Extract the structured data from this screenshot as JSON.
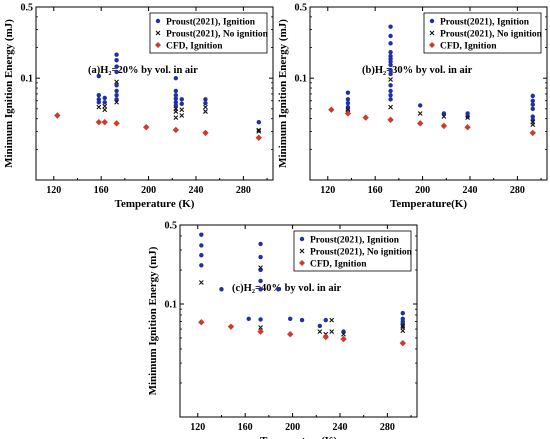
{
  "legend_labels": [
    "Proust(2021), Ignition",
    "Proust(2021), No ignition",
    "CFD, Ignition"
  ],
  "colors": {
    "ignition": "#1f2fa8",
    "no_ignition": "#111111",
    "cfd": "#cf3a2c"
  },
  "chart_data": [
    {
      "type": "scatter",
      "panel_label": "(a)H₂=20% by vol. in air",
      "xlabel": "Temperature (K)",
      "ylabel": "Minimum Ignition Energy (mJ)",
      "xlim": [
        105,
        305
      ],
      "ylim": [
        0.01,
        0.5
      ],
      "yscale": "log",
      "xticks": [
        120,
        160,
        200,
        240,
        280
      ],
      "yticks": [
        0.1,
        0.5
      ],
      "legend_position": "top-right",
      "series": [
        {
          "name": "Proust(2021), Ignition",
          "marker": "circle",
          "points": [
            [
              158,
              0.105
            ],
            [
              158,
              0.068
            ],
            [
              158,
              0.062
            ],
            [
              158,
              0.058
            ],
            [
              163,
              0.064
            ],
            [
              163,
              0.058
            ],
            [
              173,
              0.17
            ],
            [
              173,
              0.15
            ],
            [
              173,
              0.13
            ],
            [
              173,
              0.115
            ],
            [
              173,
              0.085
            ],
            [
              173,
              0.075
            ],
            [
              173,
              0.068
            ],
            [
              173,
              0.062
            ],
            [
              223,
              0.1
            ],
            [
              223,
              0.075
            ],
            [
              223,
              0.068
            ],
            [
              223,
              0.063
            ],
            [
              223,
              0.058
            ],
            [
              223,
              0.054
            ],
            [
              228,
              0.062
            ],
            [
              228,
              0.056
            ],
            [
              248,
              0.062
            ],
            [
              248,
              0.057
            ],
            [
              293,
              0.037
            ]
          ]
        },
        {
          "name": "Proust(2021), No ignition",
          "marker": "x",
          "points": [
            [
              158,
              0.052
            ],
            [
              163,
              0.053
            ],
            [
              163,
              0.049
            ],
            [
              173,
              0.092
            ],
            [
              173,
              0.058
            ],
            [
              223,
              0.05
            ],
            [
              223,
              0.047
            ],
            [
              223,
              0.041
            ],
            [
              228,
              0.049
            ],
            [
              228,
              0.043
            ],
            [
              248,
              0.052
            ],
            [
              248,
              0.047
            ],
            [
              293,
              0.031
            ],
            [
              293,
              0.03
            ]
          ]
        },
        {
          "name": "CFD, Ignition",
          "marker": "diamond",
          "points": [
            [
              123,
              0.043
            ],
            [
              158,
              0.037
            ],
            [
              163,
              0.037
            ],
            [
              173,
              0.036
            ],
            [
              198,
              0.033
            ],
            [
              223,
              0.031
            ],
            [
              248,
              0.029
            ],
            [
              293,
              0.026
            ]
          ]
        }
      ]
    },
    {
      "type": "scatter",
      "panel_label": "(b)H₂=30% by vol. in air",
      "xlabel": "Temperature(K)",
      "ylabel": "Minimum Ignition Energy (mJ)",
      "xlim": [
        105,
        305
      ],
      "ylim": [
        0.01,
        0.5
      ],
      "yscale": "log",
      "xticks": [
        120,
        160,
        200,
        240,
        280
      ],
      "yticks": [
        0.1,
        0.5
      ],
      "legend_position": "top-right",
      "series": [
        {
          "name": "Proust(2021), Ignition",
          "marker": "circle",
          "points": [
            [
              137,
              0.072
            ],
            [
              137,
              0.062
            ],
            [
              137,
              0.057
            ],
            [
              137,
              0.052
            ],
            [
              137,
              0.048
            ],
            [
              173,
              0.32
            ],
            [
              173,
              0.26
            ],
            [
              173,
              0.22
            ],
            [
              173,
              0.18
            ],
            [
              173,
              0.165
            ],
            [
              173,
              0.155
            ],
            [
              173,
              0.145
            ],
            [
              173,
              0.135
            ],
            [
              173,
              0.12
            ],
            [
              173,
              0.11
            ],
            [
              173,
              0.085
            ],
            [
              173,
              0.075
            ],
            [
              173,
              0.068
            ],
            [
              173,
              0.062
            ],
            [
              198,
              0.054
            ],
            [
              218,
              0.045
            ],
            [
              238,
              0.045
            ],
            [
              238,
              0.042
            ],
            [
              293,
              0.067
            ],
            [
              293,
              0.06
            ],
            [
              293,
              0.055
            ],
            [
              293,
              0.05
            ],
            [
              293,
              0.042
            ],
            [
              293,
              0.039
            ]
          ]
        },
        {
          "name": "Proust(2021), No ignition",
          "marker": "x",
          "points": [
            [
              137,
              0.049
            ],
            [
              173,
              0.097
            ],
            [
              173,
              0.052
            ],
            [
              198,
              0.045
            ],
            [
              218,
              0.042
            ],
            [
              238,
              0.041
            ],
            [
              293,
              0.037
            ],
            [
              293,
              0.035
            ]
          ]
        },
        {
          "name": "CFD, Ignition",
          "marker": "diamond",
          "points": [
            [
              123,
              0.049
            ],
            [
              137,
              0.045
            ],
            [
              152,
              0.041
            ],
            [
              173,
              0.039
            ],
            [
              198,
              0.036
            ],
            [
              218,
              0.034
            ],
            [
              238,
              0.033
            ],
            [
              293,
              0.029
            ]
          ]
        }
      ]
    },
    {
      "type": "scatter",
      "panel_label": "(c)H₂=40% by vol. in air",
      "xlabel": "Temperature(K)",
      "ylabel": "Minimum Ignition Energy (mJ)",
      "xlim": [
        105,
        305
      ],
      "ylim": [
        0.01,
        0.5
      ],
      "yscale": "log",
      "xticks": [
        120,
        160,
        200,
        240,
        280
      ],
      "yticks": [
        0.1,
        0.5
      ],
      "legend_position": "top-right",
      "series": [
        {
          "name": "Proust(2021), Ignition",
          "marker": "circle",
          "points": [
            [
              123,
              0.41
            ],
            [
              123,
              0.33
            ],
            [
              123,
              0.27
            ],
            [
              123,
              0.22
            ],
            [
              140,
              0.135
            ],
            [
              163,
              0.074
            ],
            [
              173,
              0.34
            ],
            [
              173,
              0.26
            ],
            [
              173,
              0.2
            ],
            [
              173,
              0.16
            ],
            [
              173,
              0.135
            ],
            [
              173,
              0.073
            ],
            [
              188,
              0.135
            ],
            [
              198,
              0.074
            ],
            [
              208,
              0.072
            ],
            [
              223,
              0.064
            ],
            [
              228,
              0.072
            ],
            [
              243,
              0.057
            ],
            [
              293,
              0.083
            ],
            [
              293,
              0.074
            ],
            [
              293,
              0.07
            ],
            [
              293,
              0.067
            ]
          ]
        },
        {
          "name": "Proust(2021), No ignition",
          "marker": "x",
          "points": [
            [
              123,
              0.155
            ],
            [
              173,
              0.21
            ],
            [
              173,
              0.062
            ],
            [
              223,
              0.057
            ],
            [
              228,
              0.054
            ],
            [
              233,
              0.072
            ],
            [
              233,
              0.057
            ],
            [
              243,
              0.054
            ],
            [
              293,
              0.064
            ],
            [
              293,
              0.062
            ],
            [
              293,
              0.058
            ]
          ]
        },
        {
          "name": "CFD, Ignition",
          "marker": "diamond",
          "points": [
            [
              123,
              0.069
            ],
            [
              148,
              0.063
            ],
            [
              173,
              0.057
            ],
            [
              198,
              0.054
            ],
            [
              228,
              0.051
            ],
            [
              243,
              0.049
            ],
            [
              293,
              0.045
            ]
          ]
        }
      ]
    }
  ]
}
